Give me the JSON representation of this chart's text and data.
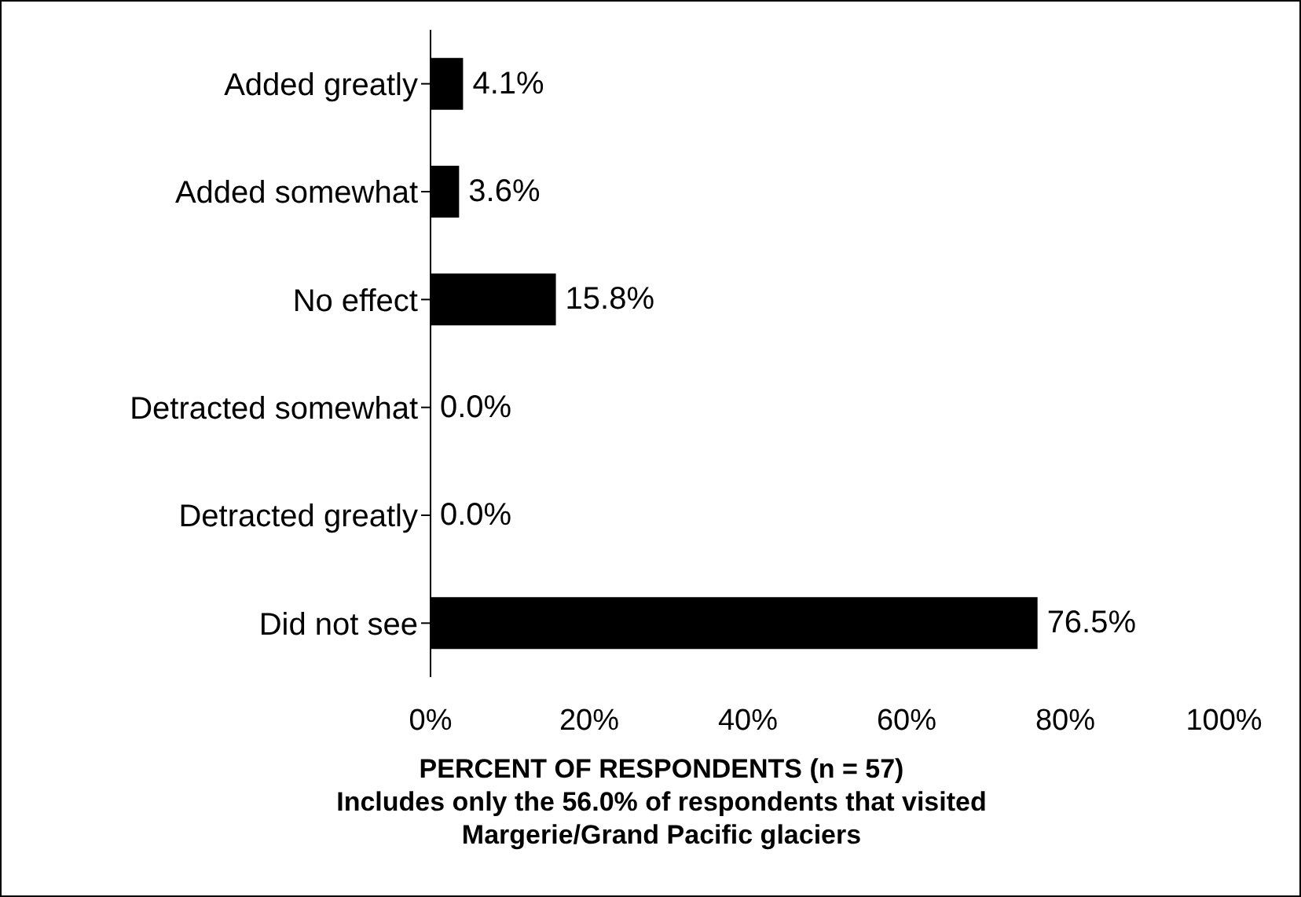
{
  "chart_data": {
    "type": "bar",
    "orientation": "horizontal",
    "categories": [
      "Added greatly",
      "Added somewhat",
      "No effect",
      "Detracted somewhat",
      "Detracted greatly",
      "Did not see"
    ],
    "values": [
      4.1,
      3.6,
      15.8,
      0.0,
      0.0,
      76.5
    ],
    "value_labels": [
      "4.1%",
      "3.6%",
      "15.8%",
      "0.0%",
      "0.0%",
      "76.5%"
    ],
    "color": "#000000",
    "xlim": [
      0,
      100
    ],
    "xticks": [
      {
        "value": 0,
        "label": "0%"
      },
      {
        "value": 20,
        "label": "20%"
      },
      {
        "value": 40,
        "label": "40%"
      },
      {
        "value": 60,
        "label": "60%"
      },
      {
        "value": 80,
        "label": "80%"
      },
      {
        "value": 100,
        "label": "100%"
      }
    ],
    "xlabel": "PERCENT OF RESPONDENTS (n = 57)",
    "annotations": [
      "Includes only the 56.0% of respondents that visited Margerie/Grand Pacific glaciers"
    ],
    "grid": false,
    "legend": false
  }
}
